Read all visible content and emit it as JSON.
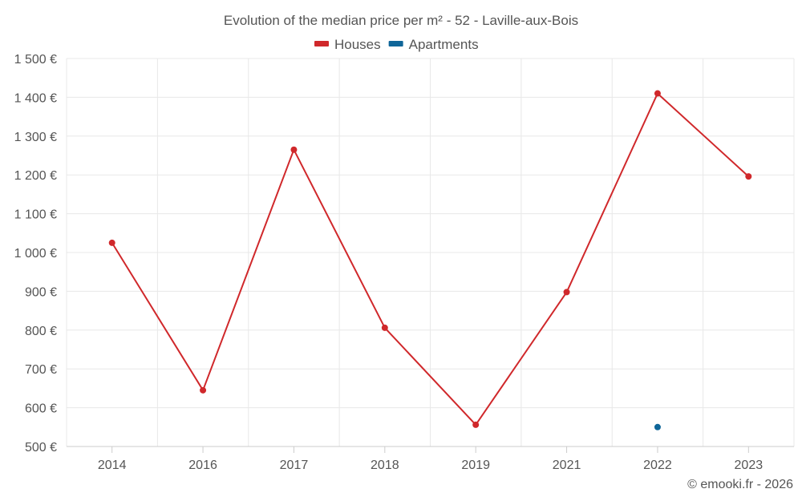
{
  "chart_data": {
    "type": "line",
    "title": "Evolution of the median price per m² - 52 - Laville-aux-Bois",
    "categories": [
      "2014",
      "2016",
      "2017",
      "2018",
      "2019",
      "2021",
      "2022",
      "2023"
    ],
    "y_ticks": [
      "500 €",
      "600 €",
      "700 €",
      "800 €",
      "900 €",
      "1 000 €",
      "1 100 €",
      "1 200 €",
      "1 300 €",
      "1 400 €",
      "1 500 €"
    ],
    "ylim": [
      500,
      1500
    ],
    "grid": true,
    "legend_position": "top-center",
    "series": [
      {
        "name": "Houses",
        "color": "#d0282b",
        "values": [
          1025,
          645,
          1265,
          806,
          556,
          898,
          1410,
          1196
        ]
      },
      {
        "name": "Apartments",
        "color": "#0f6699",
        "values": [
          null,
          null,
          null,
          null,
          null,
          null,
          550,
          null
        ]
      }
    ],
    "credit": "© emooki.fr - 2026"
  }
}
